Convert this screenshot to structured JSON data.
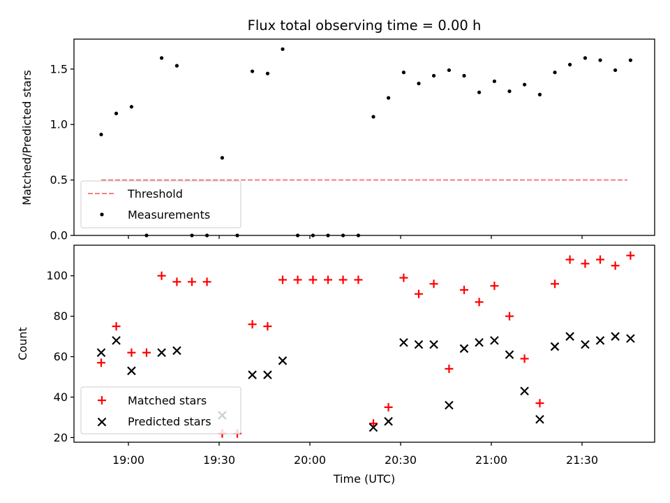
{
  "chart_data": [
    {
      "type": "scatter",
      "title": "Flux total observing time = 0.00 h",
      "xlabel": "",
      "ylabel": "Matched/Predicted stars",
      "ylim": [
        0,
        1.77
      ],
      "yticks": [
        0.0,
        0.5,
        1.0,
        1.5
      ],
      "ytick_labels": [
        "0.0",
        "0.5",
        "1.0",
        "1.5"
      ],
      "legend_loc": "lower-left",
      "series": [
        {
          "name": "Threshold",
          "kind": "line",
          "style": "dashed",
          "color": "#f08080",
          "x": [
            18.85,
            21.75
          ],
          "y": [
            0.5,
            0.5
          ]
        },
        {
          "name": "Measurements",
          "kind": "scatter",
          "marker": "dot",
          "color": "#000000",
          "x": [
            18.85,
            18.933,
            19.017,
            19.1,
            19.183,
            19.267,
            19.35,
            19.433,
            19.517,
            19.6,
            19.683,
            19.767,
            19.85,
            19.933,
            20.017,
            20.1,
            20.183,
            20.267,
            20.35,
            20.433,
            20.517,
            20.6,
            20.683,
            20.767,
            20.85,
            20.933,
            21.017,
            21.1,
            21.183,
            21.267,
            21.35,
            21.433,
            21.517,
            21.6,
            21.683,
            21.767
          ],
          "y": [
            0.91,
            1.1,
            1.16,
            0.0,
            1.6,
            1.53,
            0.0,
            0.0,
            0.7,
            0.0,
            1.48,
            1.46,
            1.68,
            0.0,
            0.0,
            0.0,
            0.0,
            0.0,
            1.07,
            1.24,
            1.47,
            1.37,
            1.44,
            1.49,
            1.44,
            1.29,
            1.39,
            1.3,
            1.36,
            1.27,
            1.47,
            1.54,
            1.6,
            1.58,
            1.49,
            1.58
          ]
        }
      ]
    },
    {
      "type": "scatter",
      "title": "",
      "xlabel": "Time (UTC)",
      "ylabel": "Count",
      "ylim": [
        17.7,
        115.1
      ],
      "yticks": [
        20,
        40,
        60,
        80,
        100
      ],
      "ytick_labels": [
        "20",
        "40",
        "60",
        "80",
        "100"
      ],
      "xlim": [
        18.7,
        21.9
      ],
      "xticks": [
        19.0,
        19.5,
        20.0,
        20.5,
        21.0,
        21.5
      ],
      "xtick_labels": [
        "19:00",
        "19:30",
        "20:00",
        "20:30",
        "21:00",
        "21:30"
      ],
      "legend_loc": "lower-left",
      "series": [
        {
          "name": "Matched stars",
          "kind": "scatter",
          "marker": "plus",
          "color": "#ff0000",
          "x": [
            18.85,
            18.933,
            19.017,
            19.1,
            19.183,
            19.267,
            19.35,
            19.433,
            19.517,
            19.6,
            19.683,
            19.767,
            19.85,
            19.933,
            20.017,
            20.1,
            20.183,
            20.267,
            20.35,
            20.433,
            20.517,
            20.6,
            20.683,
            20.767,
            20.85,
            20.933,
            21.017,
            21.1,
            21.183,
            21.267,
            21.35,
            21.433,
            21.517,
            21.6,
            21.683,
            21.767
          ],
          "y": [
            57,
            75,
            62,
            62,
            100,
            97,
            97,
            97,
            22,
            22,
            76,
            75,
            98,
            98,
            98,
            98,
            98,
            98,
            27,
            35,
            99,
            91,
            96,
            54,
            93,
            87,
            95,
            80,
            59,
            37,
            96,
            108,
            106,
            108,
            105,
            110
          ]
        },
        {
          "name": "Predicted stars",
          "kind": "scatter",
          "marker": "x",
          "color": "#000000",
          "x": [
            18.85,
            18.933,
            19.017,
            19.183,
            19.267,
            19.517,
            19.683,
            19.767,
            19.85,
            20.35,
            20.433,
            20.517,
            20.6,
            20.683,
            20.767,
            20.85,
            20.933,
            21.017,
            21.1,
            21.183,
            21.267,
            21.35,
            21.433,
            21.517,
            21.6,
            21.683,
            21.767
          ],
          "y": [
            62,
            68,
            53,
            62,
            63,
            31,
            51,
            51,
            58,
            25,
            28,
            67,
            66,
            66,
            36,
            64,
            67,
            68,
            61,
            43,
            29,
            65,
            70,
            66,
            68,
            70,
            69
          ]
        }
      ]
    }
  ]
}
